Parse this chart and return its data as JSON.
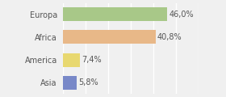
{
  "categories": [
    "Europa",
    "Africa",
    "America",
    "Asia"
  ],
  "values": [
    46.0,
    40.8,
    7.4,
    5.8
  ],
  "labels": [
    "46,0%",
    "40,8%",
    "7,4%",
    "5,8%"
  ],
  "bar_colors": [
    "#a8c888",
    "#e8b888",
    "#e8d870",
    "#7888c8"
  ],
  "background_color": "#f0f0f0",
  "xlim": [
    0,
    60
  ],
  "bar_height": 0.6,
  "label_fontsize": 7,
  "tick_fontsize": 7
}
